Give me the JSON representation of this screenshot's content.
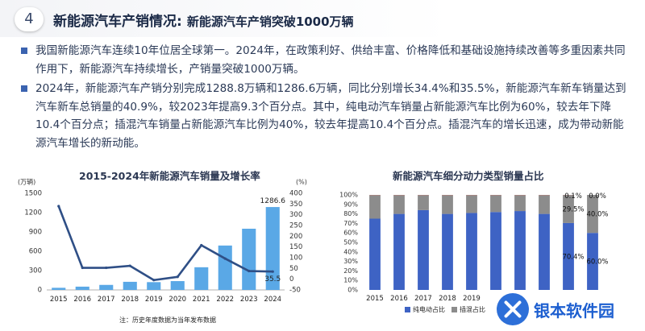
{
  "header": {
    "section_number": "4",
    "title": "新能源汽车产销情况:",
    "subtitle": "新能源汽车产销突破1000万辆"
  },
  "bullets": [
    "我国新能源汽车连续10年位居全球第一。2024年，在政策利好、供给丰富、价格降低和基础设施持续改善等多重因素共同作用下，新能源汽车持续增长，产销量突破1000万辆。",
    "2024年，新能源汽车产销分别完成1288.8万辆和1286.6万辆，同比分别增长34.4%和35.5%，新能源汽车新车销量达到汽车新车总销量的40.9%，较2023年提高9.3个百分点。其中，纯电动汽车销量占新能源汽车比例为60%，较去年下降10.4个百分点；插混汽车销量占新能源汽车比例为40%，较去年提高10.4个百分点。插混汽车的增长迅速，成为带动新能源汽车增长的新动能。"
  ],
  "footnote": "注：历史年度数据为当年发布数据",
  "watermark": "银本软件园",
  "colors": {
    "bar_blue": "#5aa8e6",
    "line_blue": "#2f4f86",
    "bev_blue": "#3e63c4",
    "phev_gray": "#8c8c8c",
    "other_red": "#c0392b"
  },
  "chart_data": [
    {
      "type": "bar",
      "title": "2015-2024年新能源汽车销量及增长率",
      "left_unit": "(万辆)",
      "right_unit": "(%)",
      "categories": [
        "2015",
        "2016",
        "2017",
        "2018",
        "2019",
        "2020",
        "2021",
        "2022",
        "2023",
        "2024"
      ],
      "series": [
        {
          "kind": "bar",
          "axis": "left",
          "values": [
            33,
            51,
            78,
            126,
            121,
            137,
            352,
            689,
            950,
            1286.6
          ]
        },
        {
          "kind": "line",
          "axis": "right",
          "values": [
            340,
            53,
            53,
            62,
            -4,
            11,
            158,
            96,
            38,
            35.5
          ]
        }
      ],
      "data_labels": {
        "bar_last": "1286.6",
        "line_last": "35.5"
      },
      "ylim_left": [
        0,
        1500
      ],
      "yticks_left": [
        "0",
        "300",
        "600",
        "900",
        "1200",
        "1500"
      ],
      "ylim_right": [
        -50,
        400
      ],
      "yticks_right": [
        "-50",
        "0",
        "50",
        "100",
        "150",
        "200",
        "250",
        "300",
        "350",
        "400"
      ]
    },
    {
      "type": "bar",
      "stacked": true,
      "title": "新能源汽车细分动力类型销量占比",
      "categories": [
        "2015",
        "2016",
        "2017",
        "2018",
        "2019",
        "",
        "",
        "",
        "",
        ""
      ],
      "series": [
        {
          "name": "纯电动占比",
          "values": [
            75,
            80,
            84,
            80,
            81,
            82,
            83,
            80,
            70.4,
            60.0
          ]
        },
        {
          "name": "插混占比",
          "values": [
            24.8,
            19.8,
            15.8,
            19.8,
            18.8,
            17.8,
            16.8,
            19.8,
            29.5,
            40.0
          ]
        },
        {
          "name": "",
          "values": [
            0.2,
            0.2,
            0.2,
            0.2,
            0.2,
            0.2,
            0.2,
            0.2,
            0.1,
            0.0
          ]
        }
      ],
      "data_labels": {
        "top": [
          "0.1%",
          "0.0%"
        ],
        "middle": [
          "29.5%",
          "40.0%"
        ],
        "bottom": [
          "70.4%",
          "60.0%"
        ]
      },
      "ylim": [
        0,
        100
      ],
      "yticks": [
        "0%",
        "10%",
        "20%",
        "30%",
        "40%",
        "50%",
        "60%",
        "70%",
        "80%",
        "90%",
        "100%"
      ]
    }
  ]
}
